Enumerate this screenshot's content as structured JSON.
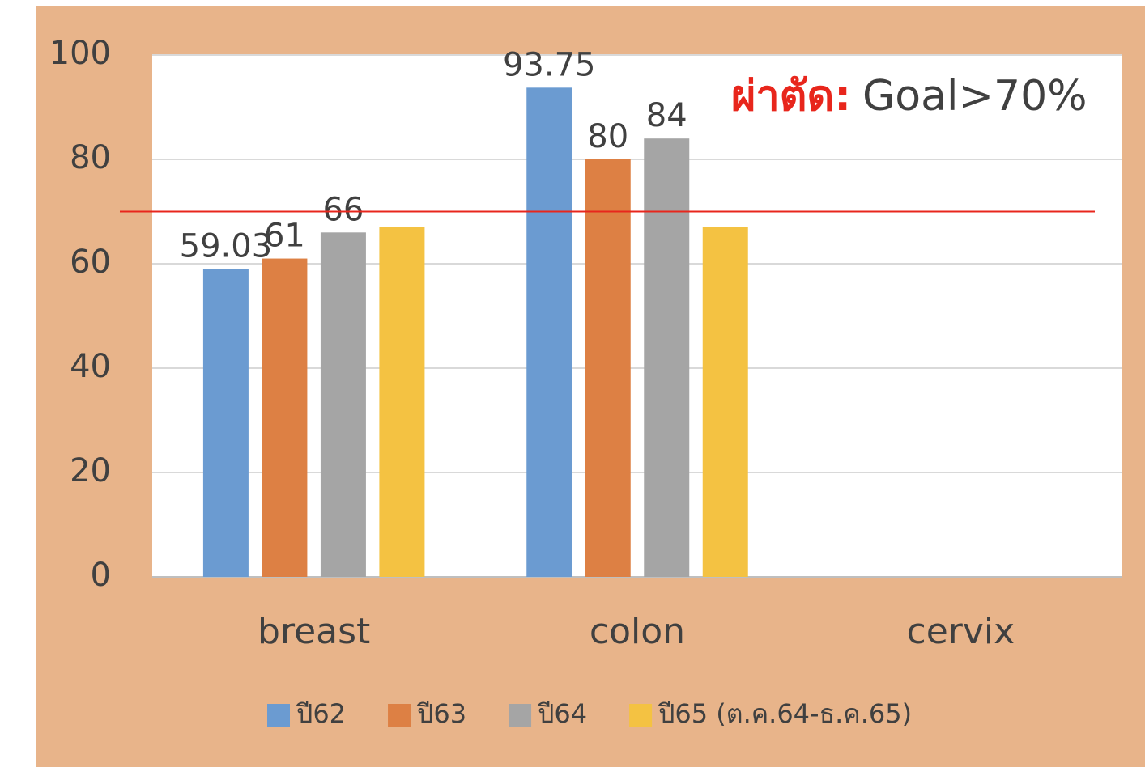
{
  "chart_data": {
    "type": "bar",
    "annotation": {
      "prefix": "ผ่าตัด:",
      "prefix_color": "#e8261c",
      "text": "Goal>70%"
    },
    "reference_line": {
      "value": 70,
      "color": "#e8261c"
    },
    "categories": [
      "breast",
      "colon",
      "cervix"
    ],
    "series": [
      {
        "name": "ปี62",
        "color": "#6b9bd1",
        "values": [
          59.03,
          93.75,
          null
        ],
        "show_labels": true
      },
      {
        "name": "ปี63",
        "color": "#dd8044",
        "values": [
          61,
          80,
          null
        ],
        "show_labels": true
      },
      {
        "name": "ปี64",
        "color": "#a5a5a5",
        "values": [
          66,
          84,
          null
        ],
        "show_labels": true
      },
      {
        "name": "ปี65 (ต.ค.64-ธ.ค.65)",
        "color": "#f4c242",
        "values": [
          67,
          67,
          null
        ],
        "show_labels": false
      }
    ],
    "ylim": [
      0,
      100
    ],
    "yticks": [
      0,
      20,
      40,
      60,
      80,
      100
    ],
    "grid": true
  }
}
